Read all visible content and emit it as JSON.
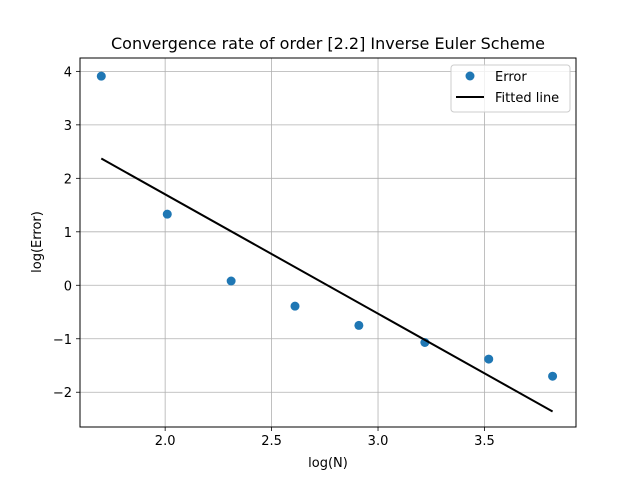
{
  "chart_data": {
    "type": "scatter",
    "title": "Convergence rate of order [2.2] Inverse Euler Scheme",
    "xlabel": "log(N)",
    "ylabel": "log(Error)",
    "xlim": [
      1.6,
      3.93
    ],
    "ylim": [
      -2.65,
      4.25
    ],
    "xticks": [
      2.0,
      2.5,
      3.0,
      3.5
    ],
    "xtick_labels": [
      "2.0",
      "2.5",
      "3.0",
      "3.5"
    ],
    "yticks": [
      -2,
      -1,
      0,
      1,
      2,
      3,
      4
    ],
    "ytick_labels": [
      "−2",
      "−1",
      "0",
      "1",
      "2",
      "3",
      "4"
    ],
    "grid": true,
    "legend_position": "top-right",
    "series": [
      {
        "name": "Error",
        "kind": "markers",
        "color": "#1f77b4",
        "x": [
          1.7,
          2.01,
          2.31,
          2.61,
          2.91,
          3.22,
          3.52,
          3.82
        ],
        "y": [
          3.91,
          1.33,
          0.08,
          -0.39,
          -0.75,
          -1.07,
          -1.38,
          -1.7
        ]
      },
      {
        "name": "Fitted line",
        "kind": "line",
        "color": "#000000",
        "x": [
          1.7,
          3.82
        ],
        "y": [
          2.37,
          -2.36
        ]
      }
    ]
  }
}
